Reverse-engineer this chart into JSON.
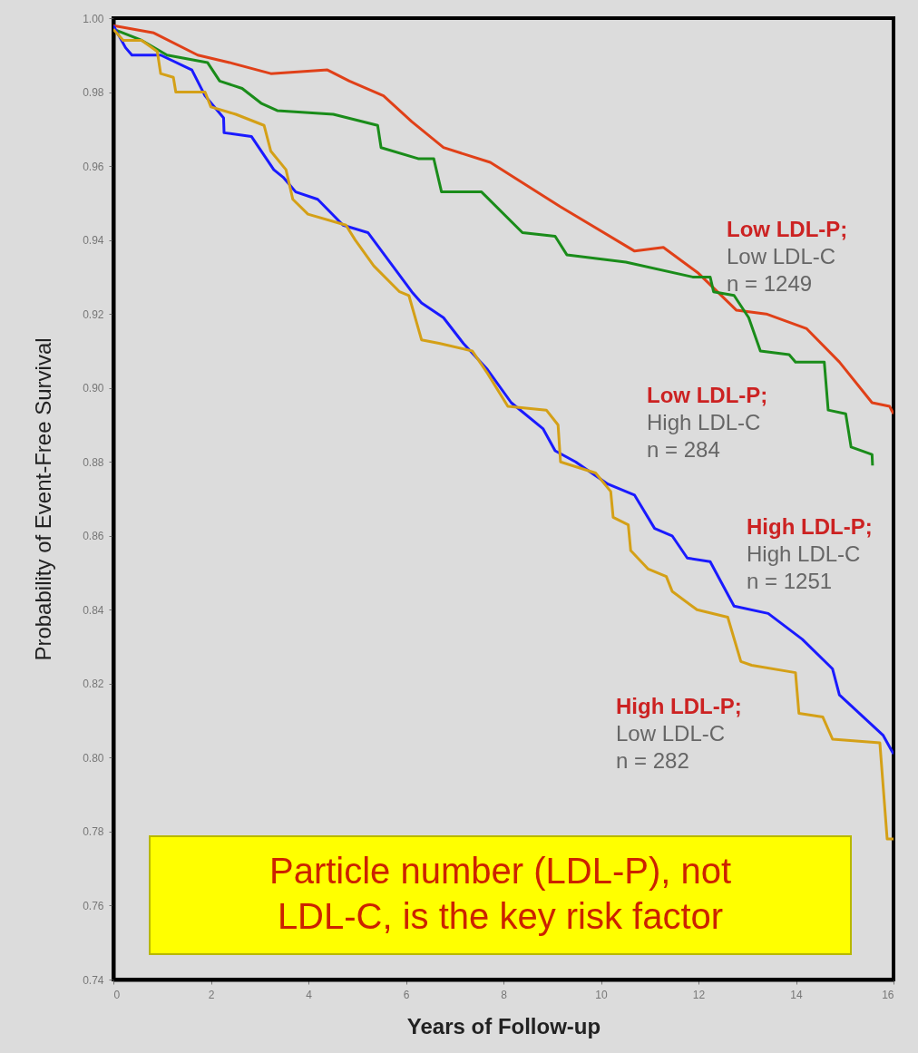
{
  "chart_data": {
    "type": "line",
    "xlabel": "Years of Follow-up",
    "ylabel": "Probability of Event-Free Survival",
    "xlim": [
      0,
      16
    ],
    "ylim": [
      0.74,
      1.0
    ],
    "xticks": [
      0,
      2,
      4,
      6,
      8,
      10,
      12,
      14,
      16
    ],
    "yticks": [
      {
        "value": 0.74,
        "label": "0.74"
      },
      0.76,
      0.78,
      {
        "value": 0.8,
        "label": "0.80"
      },
      0.82,
      0.84,
      0.86,
      0.88,
      {
        "value": 0.9,
        "label": "0.90"
      },
      0.92,
      0.94,
      0.96,
      0.98,
      {
        "value": 1.0,
        "label": "1.00"
      }
    ],
    "annotations": [
      "Particle number (LDL-P), not\nLDL-C, is the key risk factor"
    ],
    "series": [
      {
        "name": "Low LDL-P;\nLow LDL-C\nn = 1249",
        "color": "#e04018",
        "x": [
          0,
          0.83,
          1.73,
          2.38,
          3.23,
          4.39,
          4.84,
          5.54,
          6.12,
          6.77,
          7.73,
          9.17,
          10.69,
          11.28,
          12.0,
          12.78,
          13.39,
          14.22,
          14.89,
          15.56,
          15.92,
          16.0
        ],
        "values": [
          0.998,
          0.996,
          0.99,
          0.988,
          0.985,
          0.986,
          0.983,
          0.979,
          0.972,
          0.965,
          0.961,
          0.949,
          0.937,
          0.938,
          0.931,
          0.921,
          0.92,
          0.916,
          0.907,
          0.896,
          0.895,
          0.893
        ]
      },
      {
        "name": "Low LDL-P;\nHigh LDL-C\nn = 284",
        "color": "#1a8c1a",
        "x": [
          0,
          0.58,
          1.1,
          1.93,
          2.18,
          2.64,
          3.03,
          3.36,
          4.51,
          5.42,
          5.49,
          6.25,
          6.57,
          6.73,
          7.55,
          8.39,
          9.06,
          9.3,
          10.51,
          11.88,
          12.24,
          12.31,
          12.73,
          13.03,
          13.27,
          13.86,
          13.99,
          14.58,
          14.66,
          15.02,
          15.13,
          15.56,
          15.57
        ],
        "values": [
          0.997,
          0.994,
          0.99,
          0.988,
          0.983,
          0.981,
          0.977,
          0.975,
          0.974,
          0.971,
          0.965,
          0.962,
          0.962,
          0.953,
          0.953,
          0.942,
          0.941,
          0.936,
          0.934,
          0.93,
          0.93,
          0.926,
          0.925,
          0.919,
          0.91,
          0.909,
          0.907,
          0.907,
          0.894,
          0.893,
          0.884,
          0.882,
          0.879
        ]
      },
      {
        "name": "High LDL-P;\nHigh LDL-C\nn = 1251",
        "color": "#1a1aff",
        "x": [
          0,
          0.25,
          0.38,
          0.97,
          1.61,
          1.88,
          2.26,
          2.27,
          2.83,
          3.29,
          3.48,
          3.74,
          4.19,
          4.71,
          5.22,
          6.12,
          6.32,
          6.77,
          7.18,
          7.67,
          8.16,
          8.81,
          9.06,
          9.48,
          10.14,
          10.69,
          11.1,
          11.46,
          11.77,
          12.24,
          12.73,
          13.43,
          14.13,
          14.75,
          14.89,
          15.79,
          16.0
        ],
        "values": [
          0.998,
          0.992,
          0.99,
          0.99,
          0.986,
          0.979,
          0.973,
          0.969,
          0.968,
          0.959,
          0.957,
          0.953,
          0.951,
          0.944,
          0.942,
          0.926,
          0.923,
          0.919,
          0.912,
          0.905,
          0.896,
          0.889,
          0.883,
          0.88,
          0.874,
          0.871,
          0.862,
          0.86,
          0.854,
          0.853,
          0.841,
          0.839,
          0.832,
          0.824,
          0.817,
          0.806,
          0.801
        ]
      },
      {
        "name": "High LDL-P;\nLow LDL-C\nn = 282",
        "color": "#d4a017",
        "x": [
          0,
          0.2,
          0.58,
          0.9,
          0.97,
          1.23,
          1.28,
          1.88,
          2.0,
          2.51,
          3.09,
          3.23,
          3.54,
          3.68,
          3.99,
          4.77,
          4.96,
          5.34,
          5.87,
          6.06,
          6.32,
          6.7,
          7.36,
          7.67,
          8.09,
          8.88,
          9.12,
          9.17,
          9.89,
          10.2,
          10.25,
          10.56,
          10.61,
          10.97,
          11.34,
          11.46,
          11.97,
          12.6,
          12.87,
          13.09,
          13.99,
          14.06,
          14.55,
          14.75,
          15.72,
          15.87,
          16.0
        ],
        "values": [
          0.997,
          0.994,
          0.994,
          0.991,
          0.985,
          0.984,
          0.98,
          0.98,
          0.976,
          0.974,
          0.971,
          0.964,
          0.959,
          0.951,
          0.947,
          0.944,
          0.94,
          0.933,
          0.926,
          0.925,
          0.913,
          0.912,
          0.91,
          0.904,
          0.895,
          0.894,
          0.89,
          0.88,
          0.877,
          0.872,
          0.865,
          0.863,
          0.856,
          0.851,
          0.849,
          0.845,
          0.84,
          0.838,
          0.826,
          0.825,
          0.823,
          0.812,
          0.811,
          0.805,
          0.804,
          0.778,
          0.778
        ]
      }
    ]
  }
}
